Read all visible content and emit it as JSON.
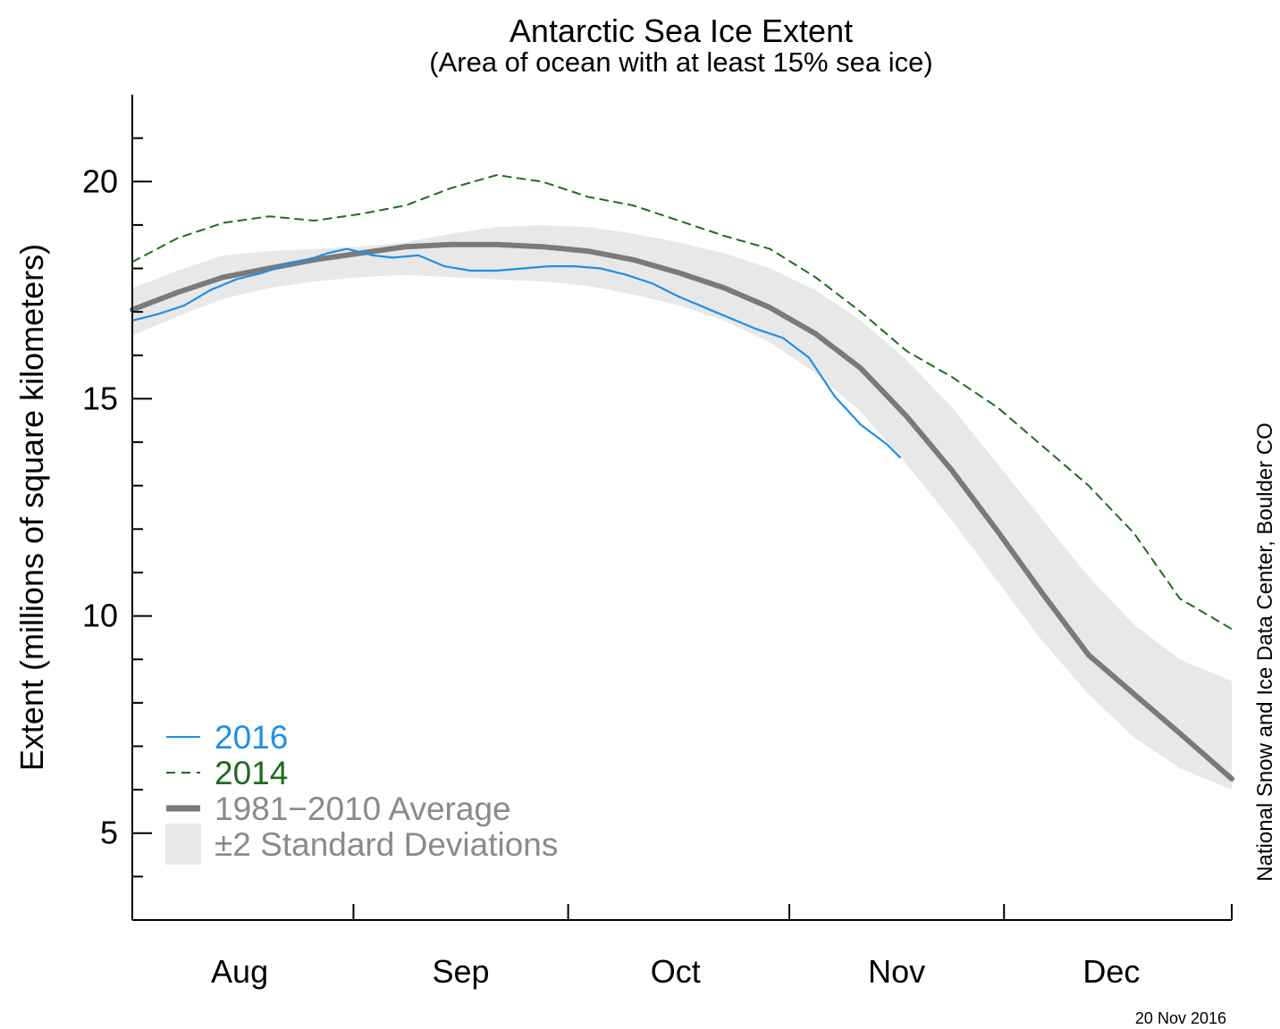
{
  "chart_data": {
    "type": "line",
    "title": "Antarctic Sea Ice Extent",
    "subtitle": "(Area of ocean with at least 15% sea ice)",
    "ylabel": "Extent (millions of square kilometers)",
    "xlabel": "",
    "ylim": [
      3,
      22
    ],
    "yticks": [
      5,
      10,
      15,
      20
    ],
    "x_axis": {
      "unit": "day of year",
      "range": [
        196,
        365
      ],
      "tick_positions": [
        230,
        263,
        297,
        330
      ],
      "month_labels": [
        {
          "label": "Aug",
          "center": 212.5
        },
        {
          "label": "Sep",
          "center": 246.5
        },
        {
          "label": "Oct",
          "center": 279.5
        },
        {
          "label": "Nov",
          "center": 313.5
        },
        {
          "label": "Dec",
          "center": 346.5
        }
      ]
    },
    "grid": false,
    "legend_position": "bottom-left",
    "credit": "National Snow and Ice Data Center, Boulder CO",
    "date_stamp": "20 Nov 2016",
    "series": [
      {
        "name": "±2 Standard Deviations",
        "style": "band",
        "color": "#e8e8e8",
        "x": [
          196,
          203,
          210,
          217,
          224,
          231,
          238,
          245,
          252,
          259,
          266,
          273,
          280,
          287,
          294,
          301,
          308,
          315,
          322,
          329,
          336,
          343,
          350,
          357,
          365
        ],
        "lower": [
          16.45,
          16.9,
          17.3,
          17.55,
          17.7,
          17.8,
          17.85,
          17.8,
          17.75,
          17.7,
          17.6,
          17.4,
          17.15,
          16.8,
          16.3,
          15.6,
          14.7,
          13.5,
          12.2,
          10.8,
          9.4,
          8.2,
          7.2,
          6.5,
          6.0
        ],
        "upper": [
          17.55,
          17.95,
          18.3,
          18.4,
          18.45,
          18.5,
          18.6,
          18.8,
          18.95,
          19.0,
          18.95,
          18.8,
          18.6,
          18.35,
          18.0,
          17.5,
          16.8,
          15.9,
          14.8,
          13.5,
          12.2,
          10.9,
          9.8,
          9.0,
          8.5
        ]
      },
      {
        "name": "1981−2010 Average",
        "style": "thick-solid",
        "color": "#7a7a7a",
        "x": [
          196,
          203,
          210,
          217,
          224,
          231,
          238,
          245,
          252,
          259,
          266,
          273,
          280,
          287,
          294,
          301,
          308,
          315,
          322,
          329,
          336,
          343,
          350,
          357,
          365
        ],
        "values": [
          17.05,
          17.45,
          17.8,
          18.0,
          18.2,
          18.35,
          18.5,
          18.55,
          18.55,
          18.5,
          18.4,
          18.2,
          17.9,
          17.55,
          17.1,
          16.5,
          15.7,
          14.6,
          13.35,
          11.95,
          10.5,
          9.1,
          8.2,
          7.3,
          6.25
        ]
      },
      {
        "name": "2014",
        "style": "dashed",
        "color": "#1f6b1f",
        "x": [
          196,
          203,
          210,
          217,
          224,
          231,
          238,
          245,
          252,
          259,
          266,
          273,
          280,
          287,
          294,
          301,
          308,
          315,
          322,
          329,
          336,
          343,
          350,
          357,
          365
        ],
        "values": [
          18.15,
          18.7,
          19.05,
          19.2,
          19.1,
          19.25,
          19.45,
          19.85,
          20.15,
          20.0,
          19.65,
          19.45,
          19.1,
          18.75,
          18.45,
          17.8,
          17.0,
          16.1,
          15.5,
          14.8,
          13.9,
          13.0,
          11.9,
          10.4,
          9.7
        ]
      },
      {
        "name": "2016",
        "style": "solid",
        "color": "#1e90e6",
        "x": [
          196,
          200,
          204,
          208,
          212,
          216,
          220,
          224,
          226,
          229,
          233,
          236,
          240,
          244,
          248,
          252,
          256,
          260,
          264,
          268,
          272,
          276,
          280,
          284,
          288,
          292,
          296,
          300,
          304,
          308,
          312,
          314
        ],
        "values": [
          16.8,
          16.95,
          17.15,
          17.5,
          17.75,
          17.9,
          18.1,
          18.25,
          18.35,
          18.45,
          18.3,
          18.25,
          18.3,
          18.05,
          17.95,
          17.95,
          18.0,
          18.05,
          18.05,
          18.0,
          17.85,
          17.65,
          17.35,
          17.1,
          16.85,
          16.6,
          16.4,
          15.95,
          15.05,
          14.4,
          13.95,
          13.65
        ]
      }
    ]
  }
}
